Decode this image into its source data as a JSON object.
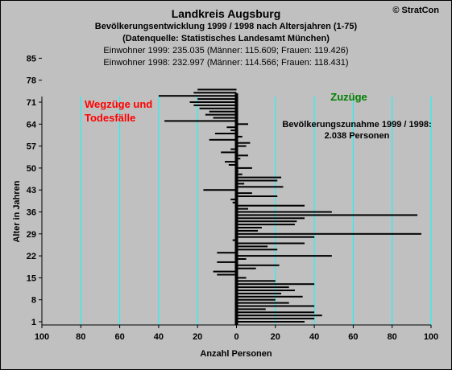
{
  "header": {
    "title": "Landkreis Augsburg",
    "subtitle_1": "Bevölkerungsentwicklung 1999 / 1998  nach Altersjahren (1-75)",
    "subtitle_2": "(Datenquelle: Statistisches Landesamt München)",
    "info_1999": "Einwohner 1999: 235.035  (Männer: 115.609; Frauen: 119.426)",
    "info_1998": "Einwohner 1998: 232.997  (Männer: 114.566; Frauen: 118.431)",
    "copyright": "© StratCon"
  },
  "colors": {
    "background": "#c0c0c0",
    "gridline": "#00ffff",
    "bars": "#000000",
    "label_left": "#ff0000",
    "label_right": "#008000"
  },
  "chart_data": {
    "type": "bar",
    "orientation": "horizontal",
    "xlabel": "Anzahl Personen",
    "ylabel": "Alter in Jahren",
    "xlim": [
      -100,
      100
    ],
    "ylim": [
      0,
      86
    ],
    "x_ticks": [
      -100,
      -80,
      -60,
      -40,
      -20,
      0,
      20,
      40,
      60,
      80,
      100
    ],
    "x_tick_labels": [
      "100",
      "80",
      "60",
      "40",
      "20",
      "0",
      "20",
      "40",
      "60",
      "80",
      "100"
    ],
    "y_ticks": [
      1,
      8,
      15,
      22,
      29,
      36,
      43,
      50,
      57,
      64,
      71,
      78,
      85
    ],
    "grid": "vertical",
    "annotations": {
      "left_label_line1": "Wegzüge und",
      "left_label_line2": "Todesfälle",
      "right_label": "Zuzüge",
      "summary_line1": "Bevölkerungszunahme 1999 / 1998:",
      "summary_line2": "2.038 Personen"
    },
    "ages": [
      1,
      2,
      3,
      4,
      5,
      6,
      7,
      8,
      9,
      10,
      11,
      12,
      13,
      14,
      15,
      16,
      17,
      18,
      19,
      20,
      21,
      22,
      23,
      24,
      25,
      26,
      27,
      28,
      29,
      30,
      31,
      32,
      33,
      34,
      35,
      36,
      37,
      38,
      39,
      40,
      41,
      42,
      43,
      44,
      45,
      46,
      47,
      48,
      49,
      50,
      51,
      52,
      53,
      54,
      55,
      56,
      57,
      58,
      59,
      60,
      61,
      62,
      63,
      64,
      65,
      66,
      67,
      68,
      69,
      70,
      71,
      72,
      73,
      74,
      75
    ],
    "values": [
      35,
      40,
      44,
      40,
      15,
      40,
      27,
      20,
      34,
      23,
      30,
      27,
      40,
      20,
      5,
      -10,
      -12,
      10,
      22,
      -10,
      5,
      49,
      -10,
      21,
      16,
      35,
      -2,
      40,
      95,
      11,
      13,
      30,
      31,
      35,
      93,
      49,
      6,
      35,
      -2,
      -3,
      21,
      8,
      -17,
      24,
      4,
      21,
      23,
      3,
      1,
      8,
      -4,
      -6,
      2,
      6,
      -8,
      -3,
      5,
      7,
      -14,
      3,
      -11,
      -3,
      -5,
      6,
      -37,
      -12,
      -16,
      -14,
      -19,
      -22,
      -24,
      -20,
      -40,
      -22,
      -20
    ]
  }
}
